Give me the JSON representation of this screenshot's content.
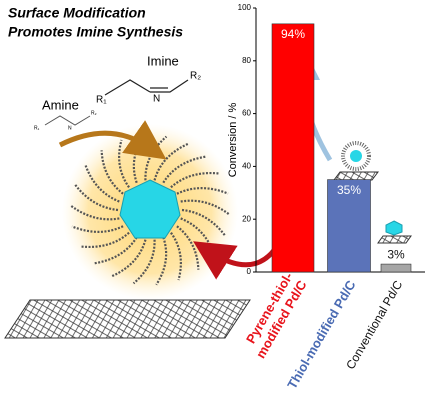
{
  "chart_data": {
    "type": "bar",
    "title_lines": [
      "Surface Modification",
      "Promotes Imine Synthesis"
    ],
    "annotations": {
      "imine": "Imine",
      "amine": "Amine",
      "r1": "R₁",
      "n": "N",
      "r2": "R₂",
      "amine_r1": "R₁",
      "amine_n": "N",
      "amine_r2": "R₂"
    },
    "y_label": "Conversion / %",
    "categories": [
      [
        "Pyrene-thiol-",
        "modified Pd/C"
      ],
      [
        "Thiol-modified Pd/C"
      ],
      [
        "Conventional Pd/C"
      ]
    ],
    "category_colors": [
      "#e8141c",
      "#4a6bb3",
      "#111111"
    ],
    "values": [
      94,
      35,
      3
    ],
    "value_labels": [
      "94%",
      "35%",
      "3%"
    ],
    "value_label_colors": [
      "#ffffff",
      "#ffffff",
      "#111111"
    ],
    "colors": [
      "#ff0000",
      "#5b73b9",
      "#a6a6a6"
    ],
    "ylim": [
      0,
      100
    ],
    "yticks": [
      0,
      20,
      40,
      60,
      80,
      100
    ]
  }
}
